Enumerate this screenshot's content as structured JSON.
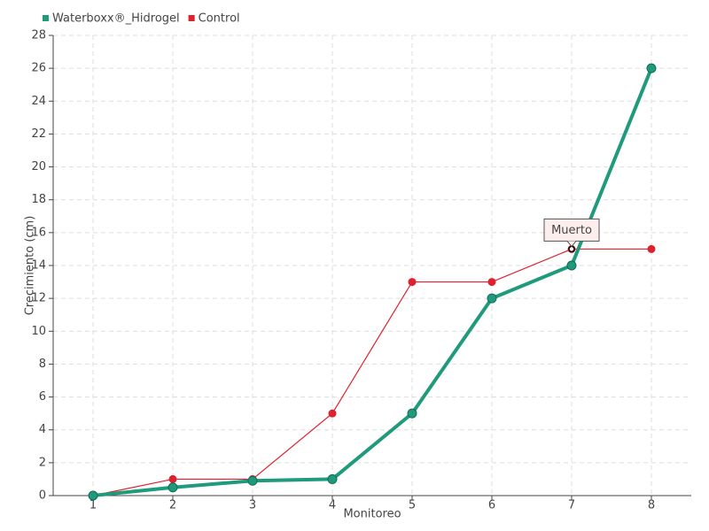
{
  "chart_data": {
    "type": "line",
    "xlabel": "Monitoreo",
    "ylabel": "Crecimiento (cm)",
    "categories": [
      "1",
      "2",
      "3",
      "4",
      "5",
      "6",
      "7",
      "8"
    ],
    "series": [
      {
        "name": "Waterboxx®_Hidrogel",
        "color": "#1f9a7c",
        "values": [
          0,
          0.5,
          0.9,
          1,
          5,
          12,
          14,
          26
        ]
      },
      {
        "name": "Control",
        "color": "#e0202c",
        "values": [
          0,
          1,
          1,
          5,
          13,
          13,
          15,
          15
        ]
      }
    ],
    "ylim": [
      0,
      28
    ],
    "yticks": [
      0,
      2,
      4,
      6,
      8,
      10,
      12,
      14,
      16,
      18,
      20,
      22,
      24,
      26,
      28
    ],
    "grid": true,
    "legend": "top-left",
    "annotations": [
      {
        "text": "Muerto",
        "category": "7",
        "series": "Control"
      }
    ]
  }
}
